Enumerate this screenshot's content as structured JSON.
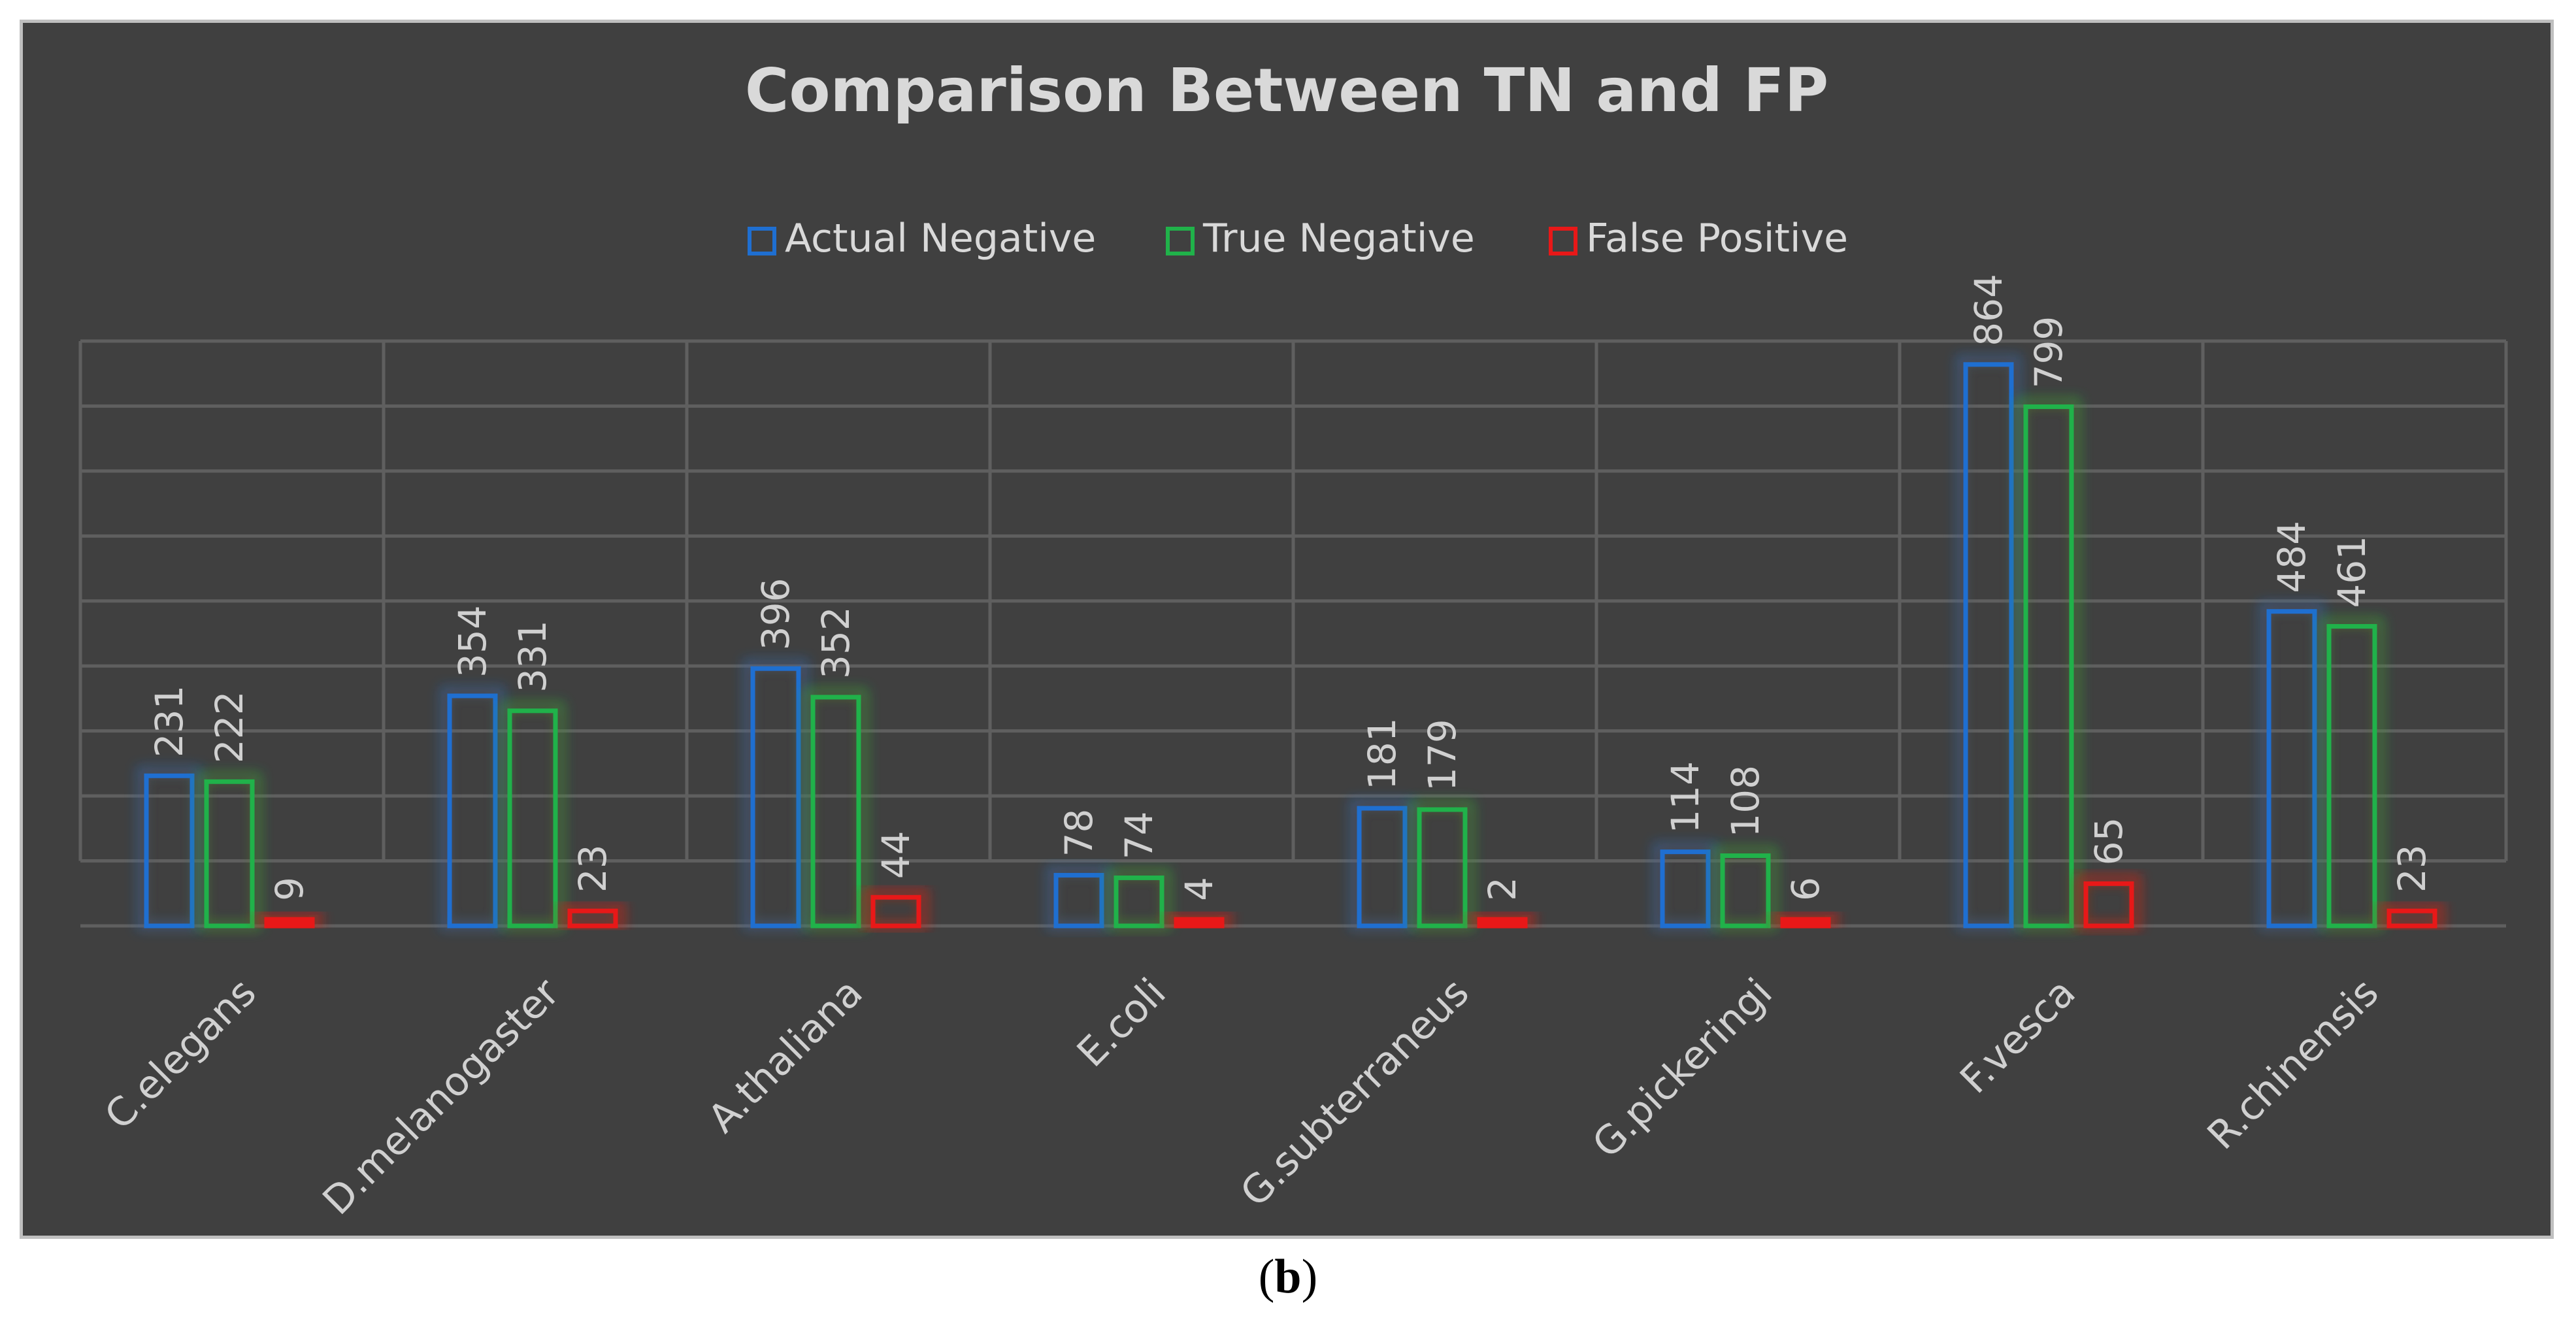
{
  "chart_data": {
    "type": "bar",
    "title": "Comparison Between TN and FP",
    "categories": [
      "C.elegans",
      "D.melanogaster",
      "A.thaliana",
      "E.coli",
      "G.subterraneus",
      "G.pickeringi",
      "F.vesca",
      "R.chinensis"
    ],
    "series": [
      {
        "name": "Actual Negative",
        "color": "#1f6fd1",
        "values": [
          231,
          354,
          396,
          78,
          181,
          114,
          864,
          484
        ]
      },
      {
        "name": "True Negative",
        "color": "#20b24a",
        "values": [
          222,
          331,
          352,
          74,
          179,
          108,
          799,
          461
        ]
      },
      {
        "name": "False Positive",
        "color": "#e81818",
        "values": [
          9,
          23,
          44,
          4,
          2,
          6,
          65,
          23
        ]
      }
    ],
    "ylim": [
      0,
      900
    ],
    "grid": true,
    "legend": "top-center",
    "xlabel": "",
    "ylabel": ""
  },
  "caption": {
    "open": "(",
    "letter": "b",
    "close": ")"
  }
}
